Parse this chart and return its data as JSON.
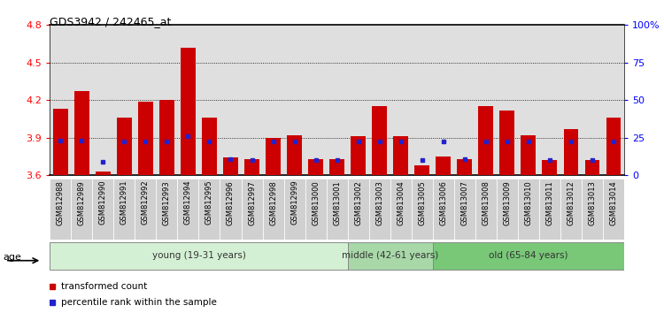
{
  "title": "GDS3942 / 242465_at",
  "samples": [
    "GSM812988",
    "GSM812989",
    "GSM812990",
    "GSM812991",
    "GSM812992",
    "GSM812993",
    "GSM812994",
    "GSM812995",
    "GSM812996",
    "GSM812997",
    "GSM812998",
    "GSM812999",
    "GSM813000",
    "GSM813001",
    "GSM813002",
    "GSM813003",
    "GSM813004",
    "GSM813005",
    "GSM813006",
    "GSM813007",
    "GSM813008",
    "GSM813009",
    "GSM813010",
    "GSM813011",
    "GSM813012",
    "GSM813013",
    "GSM813014"
  ],
  "red_values": [
    4.13,
    4.27,
    3.63,
    4.06,
    4.19,
    4.2,
    4.62,
    4.06,
    3.74,
    3.73,
    3.9,
    3.92,
    3.73,
    3.73,
    3.91,
    4.15,
    3.91,
    3.68,
    3.75,
    3.73,
    4.15,
    4.12,
    3.92,
    3.72,
    3.97,
    3.72,
    4.06
  ],
  "blue_positions": [
    3.88,
    3.88,
    3.71,
    3.87,
    3.87,
    3.87,
    3.91,
    3.87,
    3.73,
    3.72,
    3.87,
    3.87,
    3.72,
    3.72,
    3.87,
    3.87,
    3.87,
    3.72,
    3.87,
    3.73,
    3.87,
    3.87,
    3.87,
    3.72,
    3.87,
    3.72,
    3.87
  ],
  "ylim_left": [
    3.6,
    4.8
  ],
  "ylim_right": [
    0,
    100
  ],
  "yticks_left": [
    3.6,
    3.9,
    4.2,
    4.5,
    4.8
  ],
  "yticks_right": [
    0,
    25,
    50,
    75,
    100
  ],
  "ytick_labels_right": [
    "0",
    "25",
    "50",
    "75",
    "100%"
  ],
  "hgrid_lines": [
    3.9,
    4.2,
    4.5
  ],
  "groups": [
    {
      "label": "young (19-31 years)",
      "start": 0,
      "end": 14,
      "color": "#d4f0d4"
    },
    {
      "label": "middle (42-61 years)",
      "start": 14,
      "end": 18,
      "color": "#a8d8a8"
    },
    {
      "label": "old (65-84 years)",
      "start": 18,
      "end": 27,
      "color": "#78c878"
    }
  ],
  "bar_color": "#cc0000",
  "blue_color": "#2222cc",
  "bar_width": 0.7,
  "baseline": 3.6,
  "tick_bg_color": "#d0d0d0",
  "plot_bg_color": "#f0f0f0",
  "legend_items": [
    "transformed count",
    "percentile rank within the sample"
  ],
  "age_label": "age"
}
